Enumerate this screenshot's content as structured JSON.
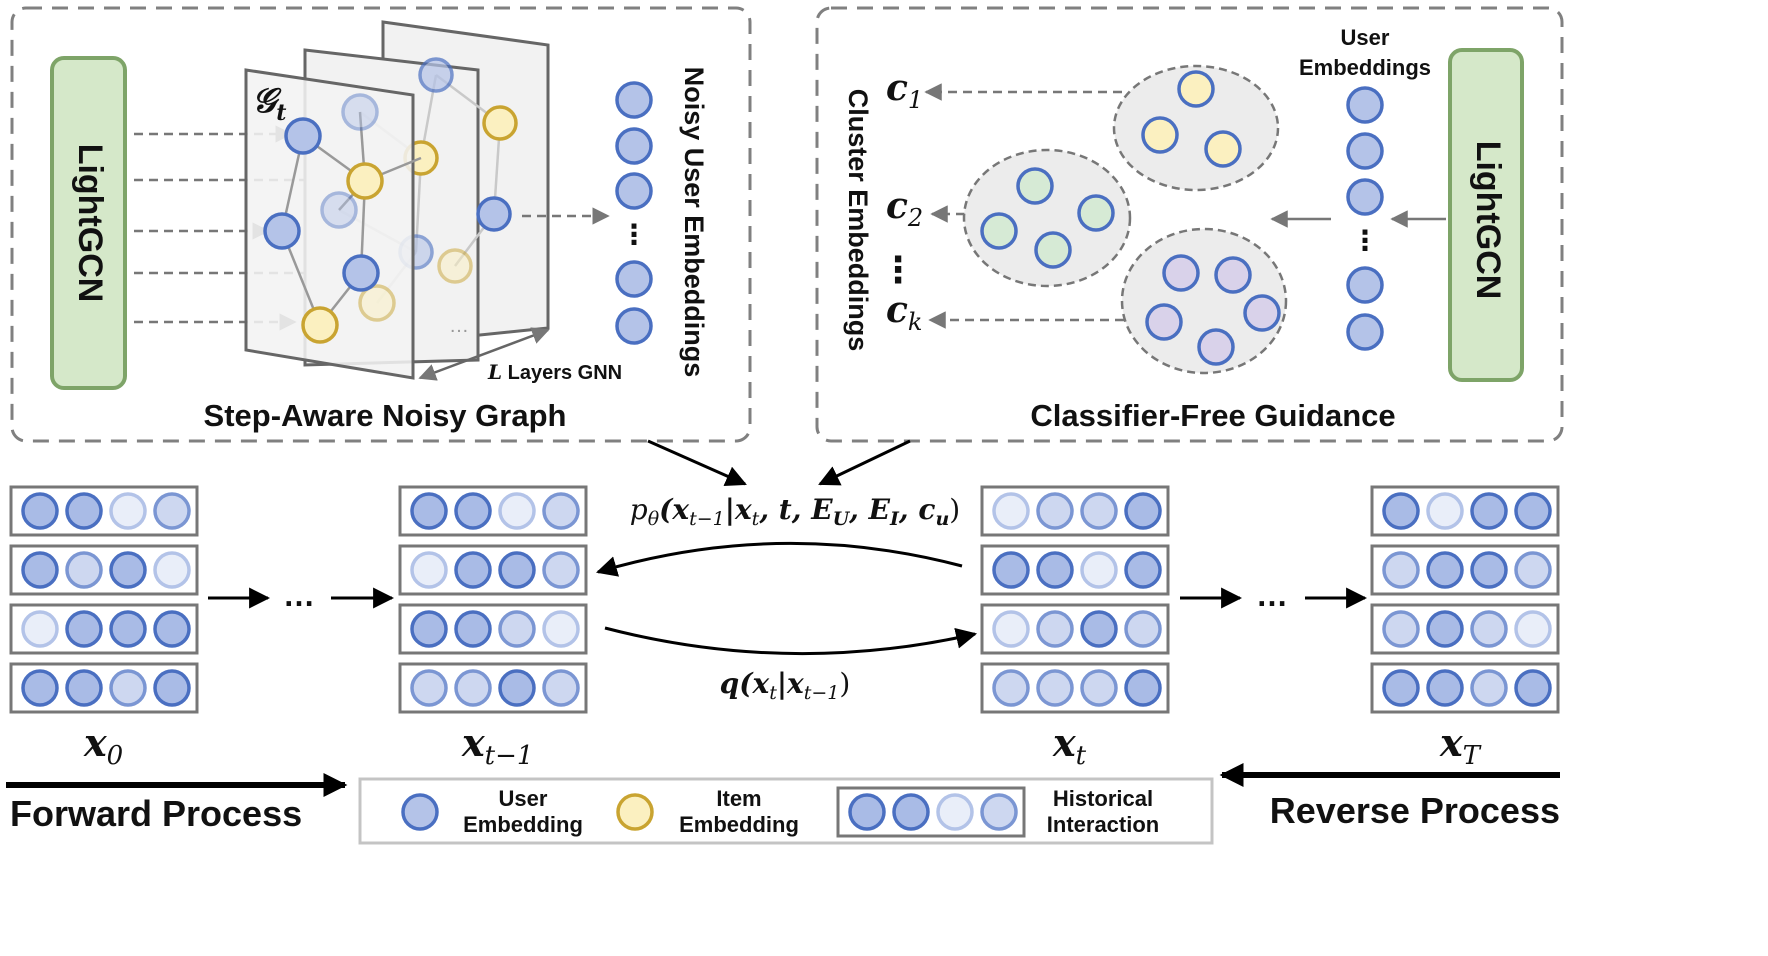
{
  "left_panel": {
    "title": "Step-Aware Noisy Graph",
    "lightgcn_label": "LightGCN",
    "graph_label": "𝒢",
    "graph_label_sub": "t",
    "layers_label_L": "L",
    "layers_label_text": " Layers GNN",
    "layer_dots": "…",
    "vertical_label": "Noisy User Embeddings",
    "stack_dots": "⋮"
  },
  "right_panel": {
    "title": "Classifier-Free Guidance",
    "lightgcn_label": "LightGCN",
    "user_emb_line1": "User",
    "user_emb_line2": "Embeddings",
    "vertical_label": "Cluster Embeddings",
    "stack_dots": "⋮",
    "clusters": [
      {
        "label": "c",
        "sub": "1"
      },
      {
        "label": "c",
        "sub": "2"
      },
      {
        "label": "c",
        "sub": "k"
      }
    ],
    "cluster_dots": "⋮"
  },
  "process": {
    "reverse_formula": {
      "p": "p",
      "theta": "θ",
      "args": "(x",
      "args_sub1": "t−1",
      "bar": "|x",
      "args_sub2": "t",
      "rest": ", t, E",
      "sub_U": "U",
      "comma_E": ", E",
      "sub_I": "I",
      "comma_c": ", c",
      "sub_u": "u",
      "close": ")"
    },
    "forward_formula": {
      "q": "q(x",
      "sub1": "t",
      "bar": "|x",
      "sub2": "t−1",
      "close": ")"
    },
    "ellipsis": "…",
    "states": [
      {
        "label": "x",
        "sub": "0"
      },
      {
        "label": "x",
        "sub": "t−1"
      },
      {
        "label": "x",
        "sub": "t"
      },
      {
        "label": "x",
        "sub": "T"
      }
    ],
    "matrices": [
      [
        [
          3,
          3,
          1,
          2
        ],
        [
          3,
          2,
          3,
          1
        ],
        [
          1,
          3,
          3,
          3
        ],
        [
          3,
          3,
          2,
          3
        ]
      ],
      [
        [
          3,
          3,
          1,
          2
        ],
        [
          1,
          3,
          3,
          2
        ],
        [
          3,
          3,
          2,
          1
        ],
        [
          2,
          2,
          3,
          2
        ]
      ],
      [
        [
          1,
          2,
          2,
          3
        ],
        [
          3,
          3,
          1,
          3
        ],
        [
          1,
          2,
          3,
          2
        ],
        [
          2,
          2,
          2,
          3
        ]
      ],
      [
        [
          3,
          1,
          3,
          3
        ],
        [
          2,
          3,
          3,
          2
        ],
        [
          2,
          3,
          2,
          1
        ],
        [
          3,
          3,
          2,
          3
        ]
      ]
    ],
    "forward_label": "Forward Process",
    "reverse_label": "Reverse Process"
  },
  "legend": {
    "user_line1": "User",
    "user_line2": "Embedding",
    "item_line1": "Item",
    "item_line2": "Embedding",
    "hist_line1": "Historical",
    "hist_line2": "Interaction",
    "hist_levels": [
      3,
      3,
      1,
      2
    ]
  },
  "colors": {
    "user_fill": "#b4c3e8",
    "user_stroke": "#4a6fc1",
    "item_fill": "#fbf0c0",
    "item_stroke": "#c9a431",
    "green_fill": "#d6ead5",
    "green_stroke": "#4a6fc1",
    "purple_fill": "#d9d2ea",
    "purple_stroke": "#4a6fc1",
    "lightgcn_fill": "#d5e8c9",
    "lightgcn_stroke": "#7ea468"
  }
}
